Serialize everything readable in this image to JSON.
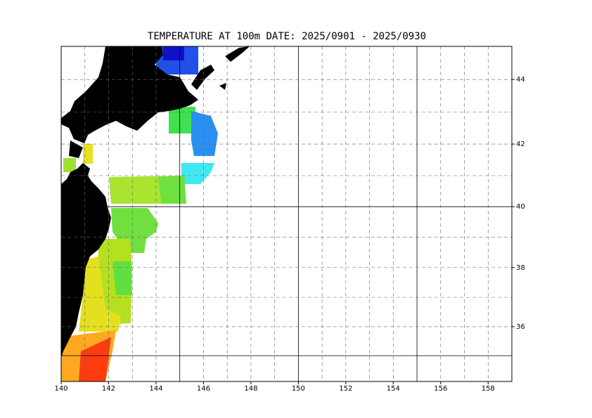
{
  "chart_data": {
    "type": "map",
    "title": "TEMPERATURE AT 100m  DATE:  2025/0901 -  2025/0930",
    "xlim": [
      140,
      159
    ],
    "ylim": [
      34.1,
      45
    ],
    "xticks": [
      140,
      142,
      144,
      146,
      148,
      150,
      152,
      154,
      156,
      158
    ],
    "yticks": [
      36,
      38,
      40,
      42,
      44
    ],
    "xgrid": [
      141,
      142,
      143,
      144,
      145,
      146,
      147,
      148,
      149,
      150,
      151,
      152,
      153,
      154,
      155,
      156,
      157,
      158
    ],
    "ygrid": [
      35,
      36,
      37,
      38,
      39,
      40,
      41,
      42,
      43,
      44
    ],
    "xmajor": [
      145,
      150,
      155
    ],
    "ymajor": [
      35,
      40
    ]
  }
}
